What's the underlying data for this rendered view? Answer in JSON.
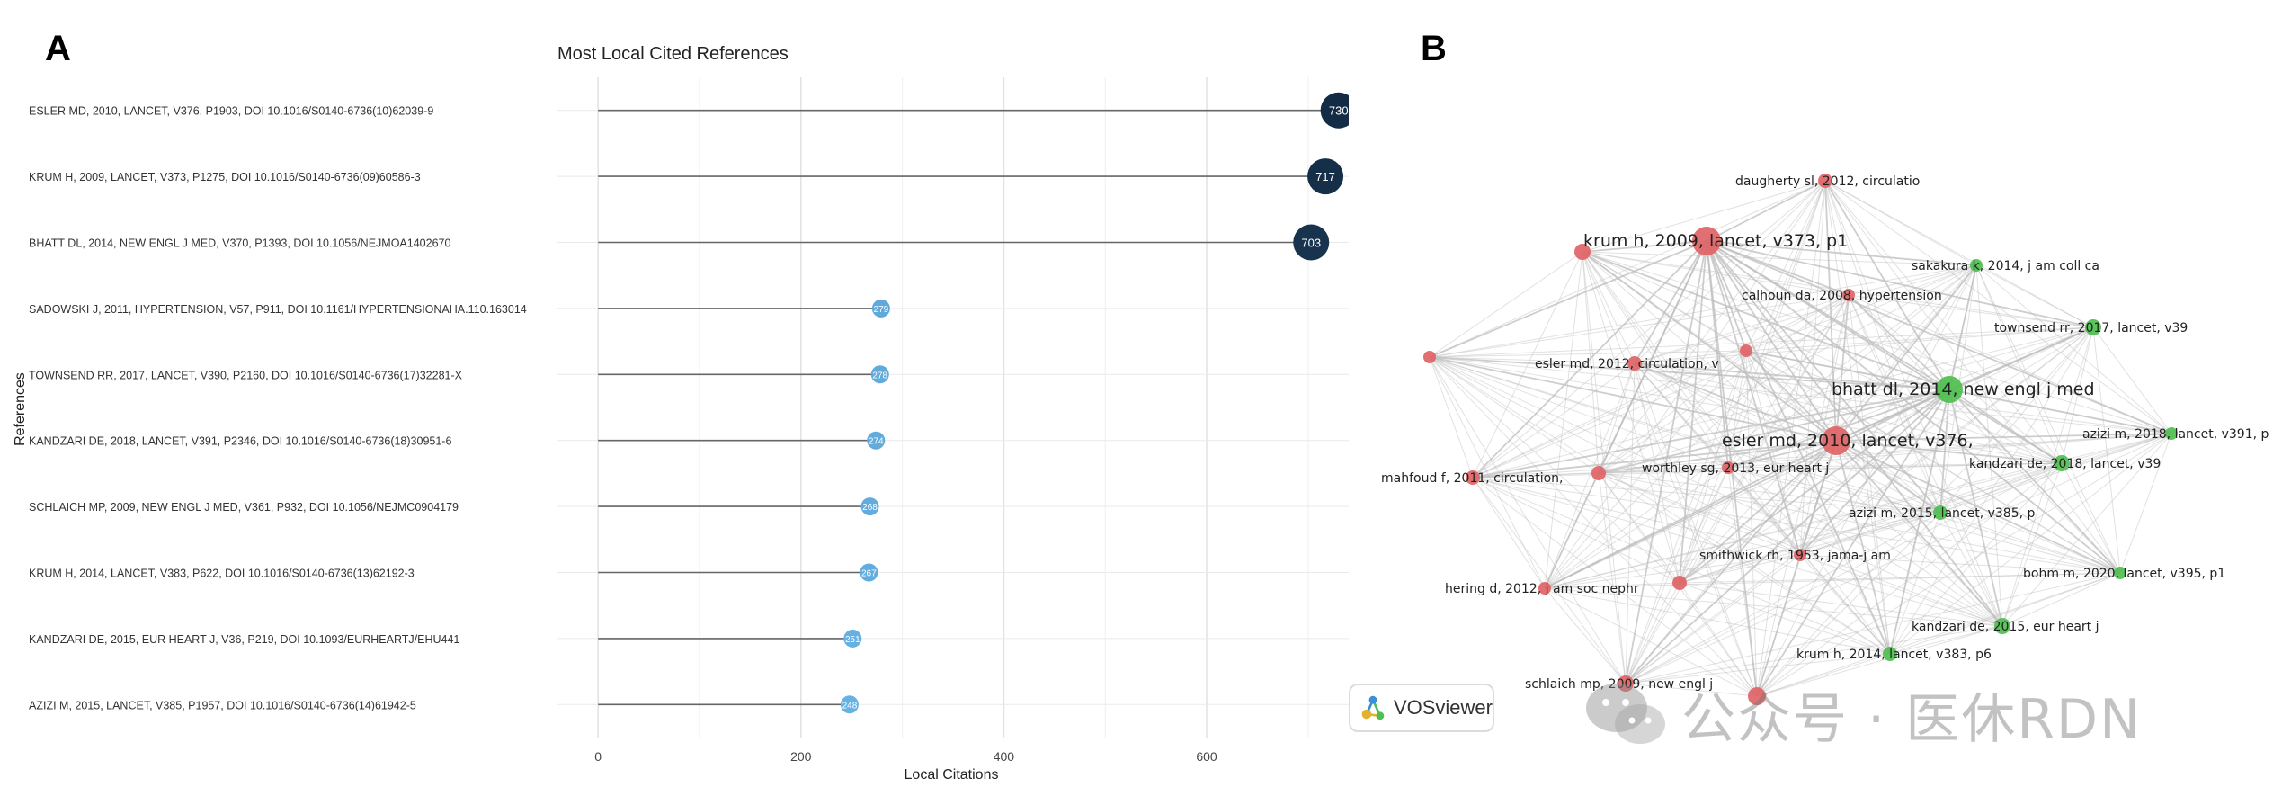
{
  "panel_a_letter": "A",
  "panel_b_letter": "B",
  "chart_data": {
    "type": "lollipop",
    "title": "Most Local Cited References",
    "xlabel": "Local Citations",
    "ylabel": "References",
    "xlim": [
      -40,
      740
    ],
    "xticks": [
      0,
      200,
      400,
      600
    ],
    "grid": true,
    "categories": [
      "ESLER MD, 2010, LANCET, V376, P1903, DOI 10.1016/S0140-6736(10)62039-9",
      "KRUM H, 2009, LANCET, V373, P1275, DOI 10.1016/S0140-6736(09)60586-3",
      "BHATT DL, 2014, NEW ENGL J MED, V370, P1393, DOI 10.1056/NEJMOA1402670",
      "SADOWSKI J, 2011, HYPERTENSION, V57, P911, DOI 10.1161/HYPERTENSIONAHA.110.163014",
      "TOWNSEND RR, 2017, LANCET, V390, P2160, DOI 10.1016/S0140-6736(17)32281-X",
      "KANDZARI DE, 2018, LANCET, V391, P2346, DOI 10.1016/S0140-6736(18)30951-6",
      "SCHLAICH MP, 2009, NEW ENGL J MED, V361, P932, DOI 10.1056/NEJMC0904179",
      "KRUM H, 2014, LANCET, V383, P622, DOI 10.1016/S0140-6736(13)62192-3",
      "KANDZARI DE, 2015, EUR HEART J, V36, P219, DOI 10.1093/EURHEARTJ/EHU441",
      "AZIZI M, 2015, LANCET, V385, P1957, DOI 10.1016/S0140-6736(14)61942-5"
    ],
    "values": [
      730,
      717,
      703,
      279,
      278,
      274,
      268,
      267,
      251,
      248
    ],
    "value_labels": [
      "730",
      "717",
      "703",
      "279",
      "278",
      "274",
      "268",
      "267",
      "251",
      "248"
    ]
  },
  "network": {
    "colors": {
      "cluster_red": "#e06466",
      "cluster_green": "#4fbf4f",
      "edges": "#bdbdbd"
    },
    "nodes": [
      {
        "label": "daugherty sl, 2012, circulatio",
        "cluster": "red",
        "size": 8,
        "anchor": "start"
      },
      {
        "label": "krum h, 2009, lancet, v373, p1",
        "cluster": "red",
        "size": 16,
        "anchor": "middle"
      },
      {
        "label": "",
        "cluster": "red",
        "size": 9
      },
      {
        "label": "sakakura k, 2014, j am coll ca",
        "cluster": "green",
        "size": 7,
        "anchor": "start"
      },
      {
        "label": "calhoun da, 2008, hypertension",
        "cluster": "red",
        "size": 7,
        "anchor": "start"
      },
      {
        "label": "townsend rr, 2017, lancet, v39",
        "cluster": "green",
        "size": 9,
        "anchor": "start"
      },
      {
        "label": "",
        "cluster": "red",
        "size": 7
      },
      {
        "label": "",
        "cluster": "red",
        "size": 7
      },
      {
        "label": "esler md, 2012, circulation, v",
        "cluster": "red",
        "size": 8,
        "anchor": "start"
      },
      {
        "label": "bhatt dl, 2014, new engl j med",
        "cluster": "green",
        "size": 15,
        "anchor": "middle"
      },
      {
        "label": "azizi m, 2018, lancet, v391, p",
        "cluster": "green",
        "size": 7,
        "anchor": "start"
      },
      {
        "label": "esler md, 2010, lancet, v376,",
        "cluster": "red",
        "size": 16,
        "anchor": "middle"
      },
      {
        "label": "kandzari de, 2018, lancet, v39",
        "cluster": "green",
        "size": 9,
        "anchor": "start"
      },
      {
        "label": "mahfoud f, 2011, circulation,",
        "cluster": "red",
        "size": 8,
        "anchor": "start"
      },
      {
        "label": "",
        "cluster": "red",
        "size": 8
      },
      {
        "label": "worthley sg, 2013, eur heart j",
        "cluster": "red",
        "size": 7,
        "anchor": "start"
      },
      {
        "label": "azizi m, 2015, lancet, v385, p",
        "cluster": "green",
        "size": 8,
        "anchor": "start"
      },
      {
        "label": "smithwick rh, 1953, jama-j am",
        "cluster": "red",
        "size": 7,
        "anchor": "start"
      },
      {
        "label": "bohm m, 2020, lancet, v395, p1",
        "cluster": "green",
        "size": 7,
        "anchor": "start"
      },
      {
        "label": "hering d, 2012, j am soc nephr",
        "cluster": "red",
        "size": 7,
        "anchor": "start"
      },
      {
        "label": "",
        "cluster": "red",
        "size": 8
      },
      {
        "label": "kandzari de, 2015, eur heart j",
        "cluster": "green",
        "size": 9,
        "anchor": "start"
      },
      {
        "label": "krum h, 2014, lancet, v383, p6",
        "cluster": "green",
        "size": 8,
        "anchor": "start"
      },
      {
        "label": "schlaich mp, 2009, new engl j",
        "cluster": "red",
        "size": 9,
        "anchor": "start"
      },
      {
        "label": "",
        "cluster": "red",
        "size": 10
      }
    ]
  },
  "vosviewer_badge": {
    "label": "VOSviewer"
  },
  "watermark": {
    "text": "公众号 · 医休RDN",
    "icon": "wechat-icon"
  }
}
